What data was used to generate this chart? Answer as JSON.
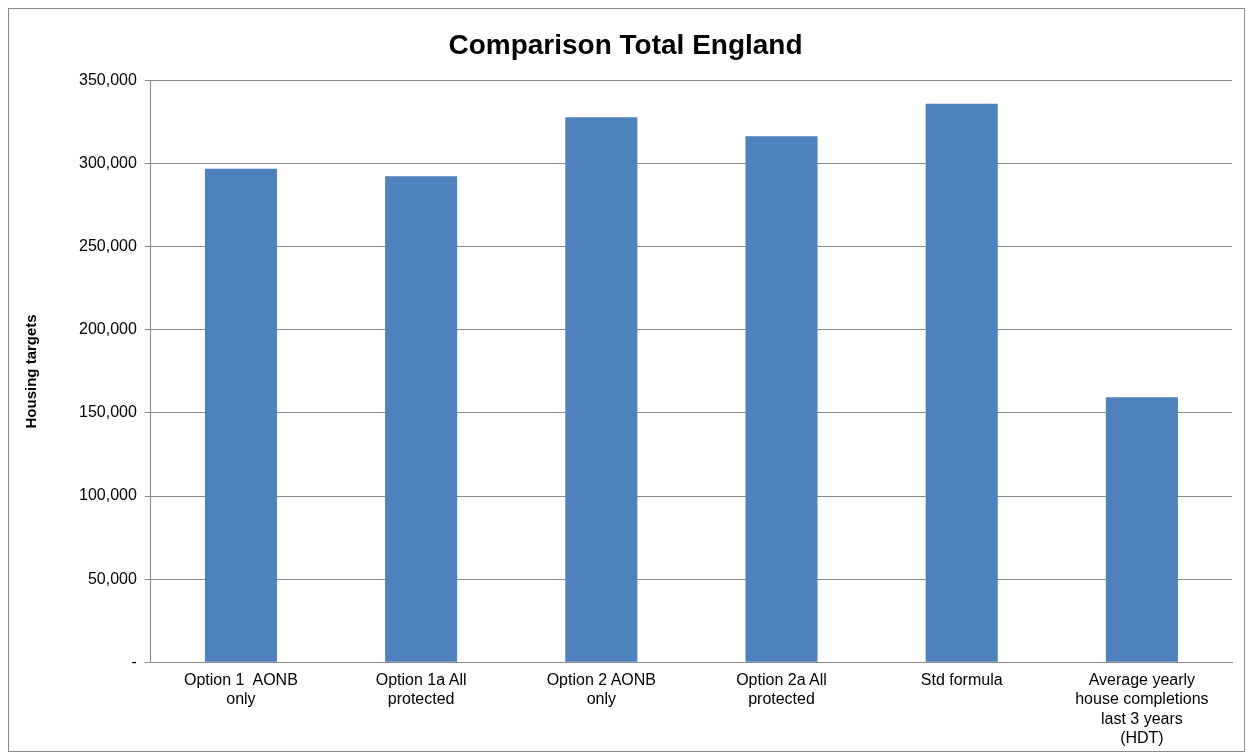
{
  "chart_data": {
    "type": "bar",
    "title": "Comparison Total England",
    "ylabel": "Housing targets",
    "categories": [
      "Option 1  AONB only",
      "Option 1a All protected",
      "Option 2 AONB only",
      "Option 2a All protected",
      "Std formula",
      "Average yearly house completions last 3 years (HDT)"
    ],
    "values": [
      297000,
      292500,
      328000,
      316500,
      336000,
      159500
    ],
    "color": "#4f81bd",
    "ylim": [
      0,
      350000
    ],
    "yticks": [
      {
        "value": 0,
        "label": "-"
      },
      {
        "value": 50000,
        "label": "50,000"
      },
      {
        "value": 100000,
        "label": "100,000"
      },
      {
        "value": 150000,
        "label": "150,000"
      },
      {
        "value": 200000,
        "label": "200,000"
      },
      {
        "value": 250000,
        "label": "250,000"
      },
      {
        "value": 300000,
        "label": "300,000"
      },
      {
        "value": 350000,
        "label": "350,000"
      }
    ],
    "grid": "y",
    "legend": false
  }
}
